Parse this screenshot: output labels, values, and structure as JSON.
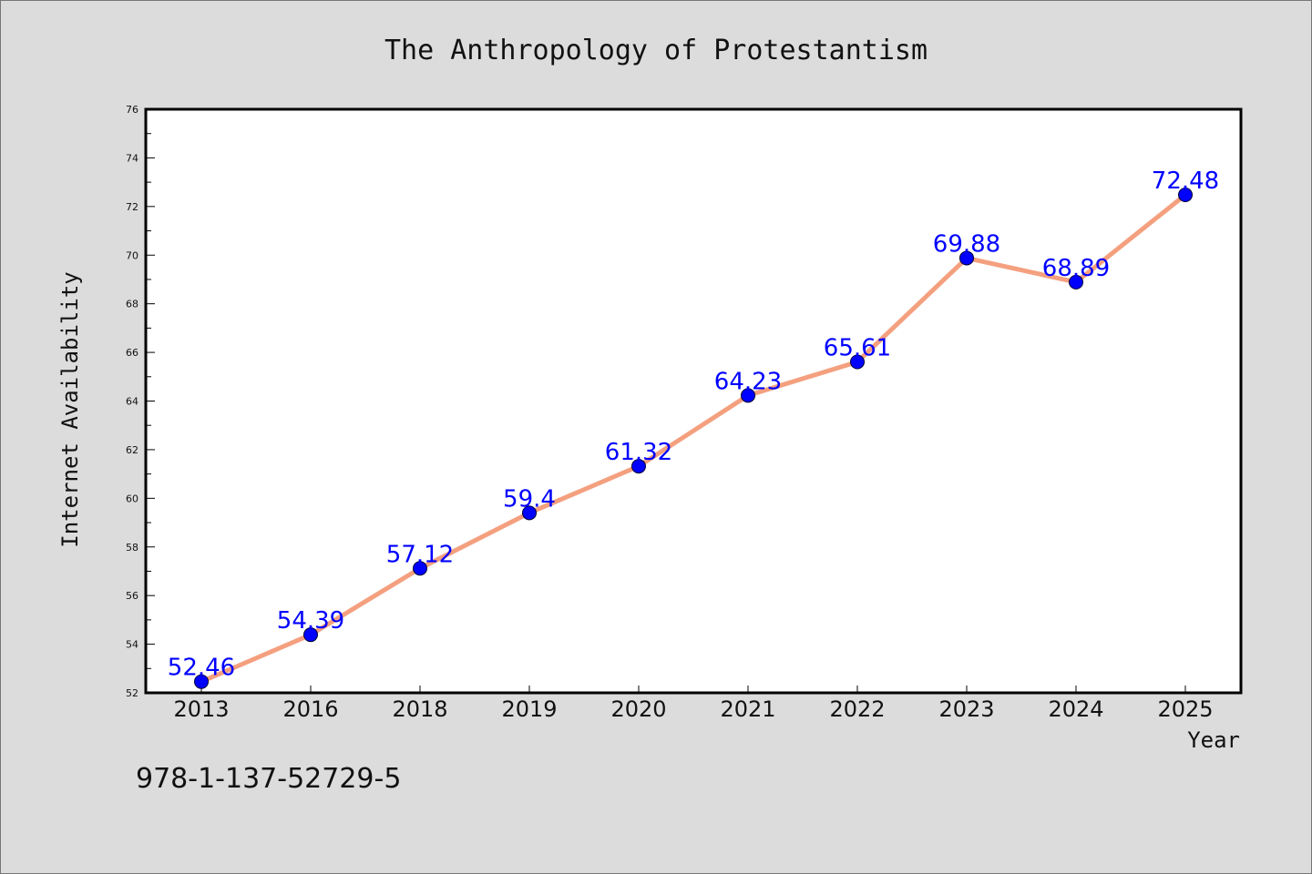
{
  "chart_data": {
    "type": "line",
    "title": "The Anthropology of Protestantism",
    "xlabel": "Year",
    "ylabel": "Internet Availability",
    "categories": [
      "2013",
      "2016",
      "2018",
      "2019",
      "2020",
      "2021",
      "2022",
      "2023",
      "2024",
      "2025"
    ],
    "series": [
      {
        "values": [
          52.46,
          54.39,
          57.12,
          59.4,
          61.32,
          64.23,
          65.61,
          69.88,
          68.89,
          72.48
        ],
        "data_labels": [
          "52.46",
          "54.39",
          "57.12",
          "59.4",
          "61.32",
          "64.23",
          "65.61",
          "69.88",
          "68.89",
          "72.48"
        ],
        "line_color": "#f4a07f",
        "marker_color": "#0000ff",
        "label_color": "#0000ff"
      }
    ],
    "ylim": [
      52,
      76
    ],
    "yticks": [
      "52",
      "54",
      "56",
      "58",
      "60",
      "62",
      "64",
      "66",
      "68",
      "70",
      "72",
      "74",
      "76"
    ],
    "grid": false,
    "legend": "none"
  },
  "footer": {
    "isbn": "978-1-137-52729-5"
  },
  "colors": {
    "background": "#dcdcdc",
    "plot_background": "#ffffff",
    "axis": "#000000"
  }
}
